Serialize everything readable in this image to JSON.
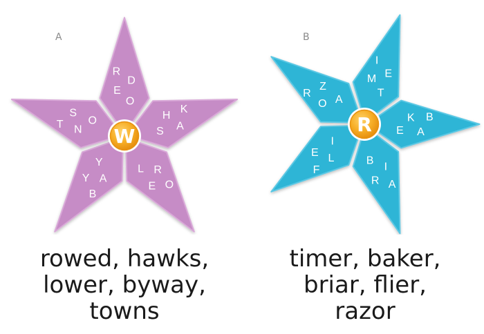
{
  "puzzles": [
    {
      "label": "A",
      "center_letter": "W",
      "colors": {
        "fill": "#c68cc6",
        "fill_light": "#d9a9d8",
        "stroke": "#ffffff",
        "letter": "#ffffff"
      },
      "segments": [
        {
          "name": "top",
          "letters": [
            "R",
            "D",
            "E",
            "O"
          ]
        },
        {
          "name": "upper-right",
          "letters": [
            "K",
            "A",
            "H",
            "S"
          ]
        },
        {
          "name": "lower-right",
          "letters": [
            "O",
            "E",
            "R",
            "L"
          ]
        },
        {
          "name": "lower-left",
          "letters": [
            "B",
            "Y",
            "A",
            "Y"
          ]
        },
        {
          "name": "upper-left",
          "letters": [
            "T",
            "S",
            "N",
            "O"
          ]
        }
      ],
      "answers": [
        "rowed, hawks,",
        "lower, byway,",
        "towns"
      ]
    },
    {
      "label": "B",
      "center_letter": "R",
      "colors": {
        "fill": "#2fb5d6",
        "fill_light": "#5cc8e4",
        "stroke": "#ffffff",
        "letter": "#ffffff"
      },
      "segments": [
        {
          "name": "top",
          "letters": [
            "I",
            "E",
            "M",
            "T"
          ]
        },
        {
          "name": "upper-right",
          "letters": [
            "B",
            "A",
            "K",
            "E"
          ]
        },
        {
          "name": "lower-right",
          "letters": [
            "A",
            "R",
            "I",
            "B"
          ]
        },
        {
          "name": "lower-left",
          "letters": [
            "F",
            "E",
            "L",
            "I"
          ]
        },
        {
          "name": "upper-left",
          "letters": [
            "R",
            "Z",
            "O",
            "A"
          ]
        }
      ],
      "answers": [
        "timer, baker,",
        "briar, flier,",
        "razor"
      ]
    }
  ],
  "center_colors": {
    "outer": "#e8920f",
    "inner": "#f7b52b",
    "letter": "#ffffff"
  }
}
